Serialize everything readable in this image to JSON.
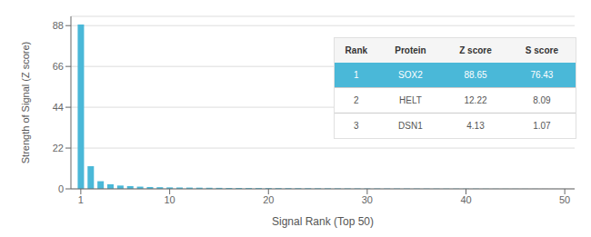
{
  "chart_data": {
    "type": "bar",
    "x": [
      1,
      2,
      3,
      4,
      5,
      6,
      7,
      8,
      9,
      10,
      11,
      12,
      13,
      14,
      15,
      16,
      17,
      18,
      19,
      20,
      21,
      22,
      23,
      24,
      25,
      26,
      27,
      28,
      29,
      30,
      31,
      32,
      33,
      34,
      35,
      36,
      37,
      38,
      39,
      40,
      41,
      42,
      43,
      44,
      45,
      46,
      47,
      48,
      49,
      50
    ],
    "values": [
      88.65,
      12.22,
      4.13,
      2.5,
      1.8,
      1.5,
      1.2,
      1.0,
      0.9,
      0.8,
      0.75,
      0.7,
      0.65,
      0.6,
      0.55,
      0.5,
      0.48,
      0.46,
      0.44,
      0.42,
      0.4,
      0.38,
      0.36,
      0.34,
      0.32,
      0.3,
      0.28,
      0.26,
      0.24,
      0.22,
      0.21,
      0.2,
      0.19,
      0.18,
      0.17,
      0.16,
      0.15,
      0.14,
      0.13,
      0.12,
      0.11,
      0.1,
      0.09,
      0.08,
      0.07,
      0.06,
      0.05,
      0.04,
      0.03,
      0.02
    ],
    "color": "#4ab8d8",
    "xlabel": "Signal Rank (Top 50)",
    "ylabel": "Strength of Signal (Z score)",
    "xlim": [
      0,
      51
    ],
    "xticks": [
      1,
      10,
      20,
      30,
      40,
      50
    ],
    "ylim": [
      0,
      93
    ],
    "yticks": [
      0,
      22,
      44,
      66,
      88
    ],
    "grid": true,
    "table": {
      "headers": [
        "Rank",
        "Protein",
        "Z score",
        "S score"
      ],
      "rows": [
        [
          "1",
          "SOX2",
          "88.65",
          "76.43"
        ],
        [
          "2",
          "HELT",
          "12.22",
          "8.09"
        ],
        [
          "3",
          "DSN1",
          "4.13",
          "1.07"
        ]
      ]
    }
  }
}
